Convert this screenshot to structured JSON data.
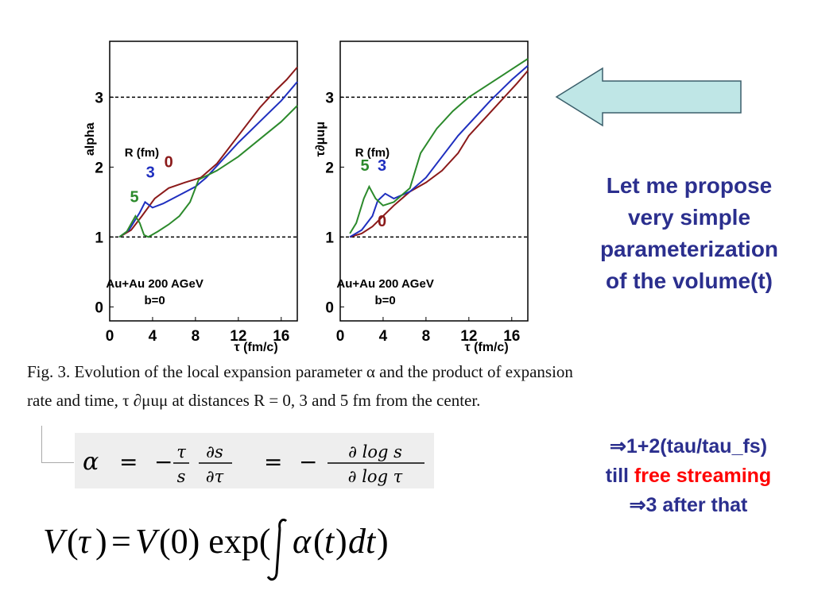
{
  "chart_data": [
    {
      "type": "line",
      "ylabel": "alpha",
      "xlabel": "τ (fm/c)",
      "xlim": [
        0,
        17.5
      ],
      "ylim": [
        -0.2,
        3.8
      ],
      "xticks": [
        0,
        4,
        8,
        12,
        16
      ],
      "yticks": [
        0,
        1,
        2,
        3
      ],
      "reference_lines": [
        1,
        3
      ],
      "grid": false,
      "legend_title": "R (fm)",
      "annotation": [
        "Au+Au 200 AGeV",
        "b=0"
      ],
      "series": [
        {
          "name": "0",
          "color": "#8b1a1a",
          "points": [
            [
              0.9,
              1.0
            ],
            [
              2.0,
              1.1
            ],
            [
              3.0,
              1.3
            ],
            [
              4.2,
              1.55
            ],
            [
              5.5,
              1.7
            ],
            [
              7,
              1.78
            ],
            [
              8.5,
              1.85
            ],
            [
              10,
              2.05
            ],
            [
              12,
              2.45
            ],
            [
              14,
              2.85
            ],
            [
              15.5,
              3.1
            ],
            [
              16.5,
              3.25
            ],
            [
              17.5,
              3.43
            ]
          ]
        },
        {
          "name": "3",
          "color": "#1f2fbf",
          "points": [
            [
              0.9,
              1.0
            ],
            [
              1.8,
              1.1
            ],
            [
              2.8,
              1.35
            ],
            [
              3.3,
              1.5
            ],
            [
              4.0,
              1.42
            ],
            [
              5,
              1.48
            ],
            [
              6.5,
              1.6
            ],
            [
              8,
              1.72
            ],
            [
              9,
              1.85
            ],
            [
              10.5,
              2.1
            ],
            [
              12,
              2.35
            ],
            [
              14,
              2.65
            ],
            [
              16,
              2.95
            ],
            [
              17.5,
              3.22
            ]
          ]
        },
        {
          "name": "5",
          "color": "#2c8a2c",
          "points": [
            [
              0.9,
              1.0
            ],
            [
              1.6,
              1.08
            ],
            [
              2.4,
              1.3
            ],
            [
              2.8,
              1.2
            ],
            [
              3.2,
              1.03
            ],
            [
              3.6,
              1.0
            ],
            [
              4.5,
              1.08
            ],
            [
              5.5,
              1.18
            ],
            [
              6.5,
              1.3
            ],
            [
              7.5,
              1.5
            ],
            [
              8.3,
              1.82
            ],
            [
              10,
              1.95
            ],
            [
              12,
              2.15
            ],
            [
              14,
              2.4
            ],
            [
              16,
              2.65
            ],
            [
              17.5,
              2.88
            ]
          ]
        }
      ]
    },
    {
      "type": "line",
      "ylabel": "τ∂μuμ",
      "xlabel": "τ (fm/c)",
      "xlim": [
        0,
        17.5
      ],
      "ylim": [
        -0.2,
        3.8
      ],
      "xticks": [
        0,
        4,
        8,
        12,
        16
      ],
      "yticks": [
        0,
        1,
        2,
        3
      ],
      "reference_lines": [
        1,
        3
      ],
      "grid": false,
      "legend_title": "R (fm)",
      "annotation": [
        "Au+Au 200 AGeV",
        "b=0"
      ],
      "series": [
        {
          "name": "0",
          "color": "#8b1a1a",
          "points": [
            [
              0.9,
              1.0
            ],
            [
              2.0,
              1.05
            ],
            [
              3.0,
              1.15
            ],
            [
              4.0,
              1.3
            ],
            [
              5,
              1.45
            ],
            [
              6.5,
              1.65
            ],
            [
              8,
              1.78
            ],
            [
              9.5,
              1.95
            ],
            [
              11,
              2.2
            ],
            [
              12,
              2.45
            ],
            [
              13.5,
              2.7
            ],
            [
              15,
              2.95
            ],
            [
              16.5,
              3.2
            ],
            [
              17.5,
              3.38
            ]
          ]
        },
        {
          "name": "3",
          "color": "#1f2fbf",
          "points": [
            [
              0.9,
              1.0
            ],
            [
              2.0,
              1.1
            ],
            [
              3.0,
              1.3
            ],
            [
              3.5,
              1.52
            ],
            [
              4.2,
              1.62
            ],
            [
              5,
              1.55
            ],
            [
              6.5,
              1.65
            ],
            [
              8,
              1.85
            ],
            [
              9.5,
              2.15
            ],
            [
              11,
              2.45
            ],
            [
              12.5,
              2.7
            ],
            [
              14,
              2.95
            ],
            [
              16,
              3.25
            ],
            [
              17.5,
              3.45
            ]
          ]
        },
        {
          "name": "5",
          "color": "#2c8a2c",
          "points": [
            [
              0.9,
              1.05
            ],
            [
              1.5,
              1.2
            ],
            [
              2.2,
              1.55
            ],
            [
              2.7,
              1.72
            ],
            [
              3.3,
              1.55
            ],
            [
              4,
              1.45
            ],
            [
              5,
              1.5
            ],
            [
              6.5,
              1.7
            ],
            [
              7.5,
              2.2
            ],
            [
              9,
              2.55
            ],
            [
              10.5,
              2.8
            ],
            [
              12,
              3.0
            ],
            [
              14,
              3.2
            ],
            [
              16,
              3.4
            ],
            [
              17.5,
              3.55
            ]
          ]
        }
      ]
    }
  ],
  "caption": {
    "line1": "Fig. 3.  Evolution of the local expansion parameter α and the product of expansion",
    "line2": "rate and time, τ ∂μuμ at distances R = 0, 3 and 5 fm from the center."
  },
  "equations": {
    "alpha": "α = −(τ/s)(∂s/∂τ) = −∂ log s / ∂ log τ",
    "volume": "V(τ) = V(0) exp(∫α(t)dt)"
  },
  "right_text": {
    "proposal": [
      "Let me propose",
      "very simple",
      "parameterization",
      "of the volume(t)"
    ],
    "rule_line1": "⇒1+2(tau/tau_fs)",
    "rule_line2_prefix": "till ",
    "rule_line2_red": "free streaming",
    "rule_line3": "⇒3 after that"
  },
  "colors": {
    "arrow_fill": "#bfe6e6",
    "note_text": "#2b2f8e",
    "highlight": "#ff0000"
  }
}
